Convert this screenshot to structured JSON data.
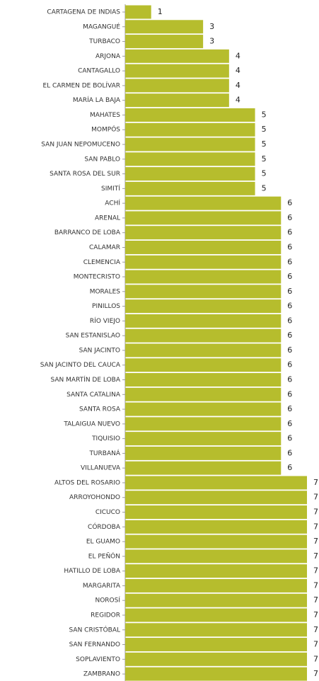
{
  "chart_data": {
    "type": "bar",
    "orientation": "horizontal",
    "color": "#b6bd2d",
    "categories": [
      "CARTAGENA DE INDIAS",
      "MAGANGUÉ",
      "TURBACO",
      "ARJONA",
      "CANTAGALLO",
      "EL CARMEN DE BOLÍVAR",
      "MARÍA LA BAJA",
      "MAHATES",
      "MOMPÓS",
      "SAN JUAN NEPOMUCENO",
      "SAN PABLO",
      "SANTA ROSA DEL SUR",
      "SIMITÍ",
      "ACHÍ",
      "ARENAL",
      "BARRANCO DE LOBA",
      "CALAMAR",
      "CLEMENCIA",
      "MONTECRISTO",
      "MORALES",
      "PINILLOS",
      "RÍO VIEJO",
      "SAN ESTANISLAO",
      "SAN JACINTO",
      "SAN JACINTO DEL CAUCA",
      "SAN MARTÍN DE LOBA",
      "SANTA CATALINA",
      "SANTA ROSA",
      "TALAIGUA NUEVO",
      "TIQUISIO",
      "TURBANÁ",
      "VILLANUEVA",
      "ALTOS DEL ROSARIO",
      "ARROYOHONDO",
      "CICUCO",
      "CÓRDOBA",
      "EL GUAMO",
      "EL PEÑÓN",
      "HATILLO DE LOBA",
      "MARGARITA",
      "NOROSÍ",
      "REGIDOR",
      "SAN CRISTÓBAL",
      "SAN FERNANDO",
      "SOPLAVIENTO",
      "ZAMBRANO"
    ],
    "values": [
      1,
      3,
      3,
      4,
      4,
      4,
      4,
      5,
      5,
      5,
      5,
      5,
      5,
      6,
      6,
      6,
      6,
      6,
      6,
      6,
      6,
      6,
      6,
      6,
      6,
      6,
      6,
      6,
      6,
      6,
      6,
      6,
      7,
      7,
      7,
      7,
      7,
      7,
      7,
      7,
      7,
      7,
      7,
      7,
      7,
      7
    ]
  }
}
